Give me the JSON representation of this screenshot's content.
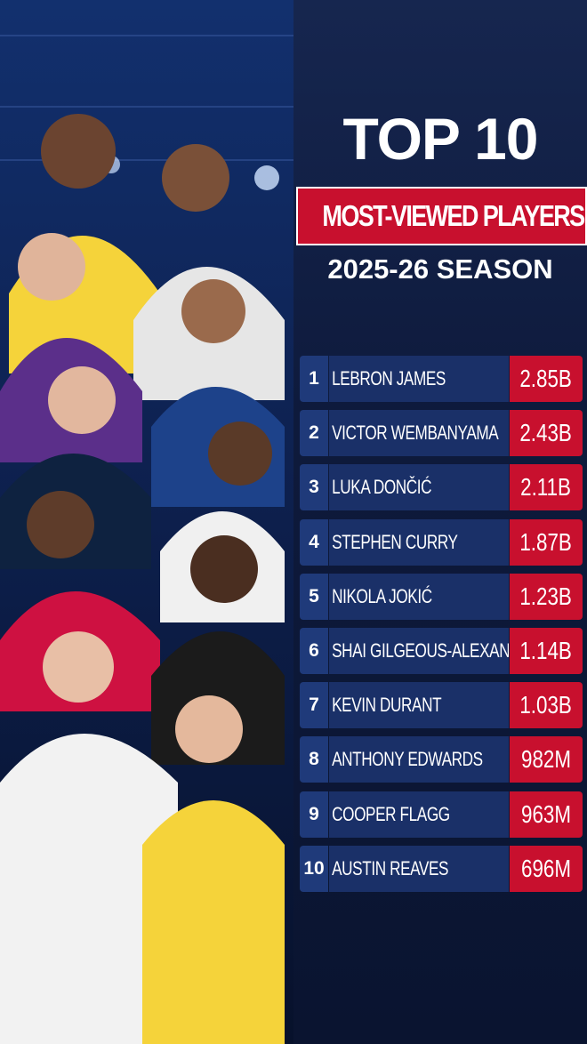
{
  "header": {
    "title": "TOP 10",
    "subtitle": "MOST-VIEWED PLAYERS",
    "season": "2025-26 SEASON"
  },
  "table": {
    "rows": [
      {
        "rank": 1,
        "name": "LEBRON JAMES",
        "views": "2.85B"
      },
      {
        "rank": 2,
        "name": "VICTOR WEMBANYAMA",
        "views": "2.43B"
      },
      {
        "rank": 3,
        "name": "LUKA DONČIĆ",
        "views": "2.11B"
      },
      {
        "rank": 4,
        "name": "STEPHEN CURRY",
        "views": "1.87B"
      },
      {
        "rank": 5,
        "name": "NIKOLA JOKIĆ",
        "views": "1.23B"
      },
      {
        "rank": 6,
        "name": "SHAI GILGEOUS-ALEXANDER",
        "views": "1.14B"
      },
      {
        "rank": 7,
        "name": "KEVIN DURANT",
        "views": "1.03B"
      },
      {
        "rank": 8,
        "name": "ANTHONY EDWARDS",
        "views": "982M"
      },
      {
        "rank": 9,
        "name": "COOPER FLAGG",
        "views": "963M"
      },
      {
        "rank": 10,
        "name": "AUSTIN REAVES",
        "views": "696M"
      }
    ]
  }
}
